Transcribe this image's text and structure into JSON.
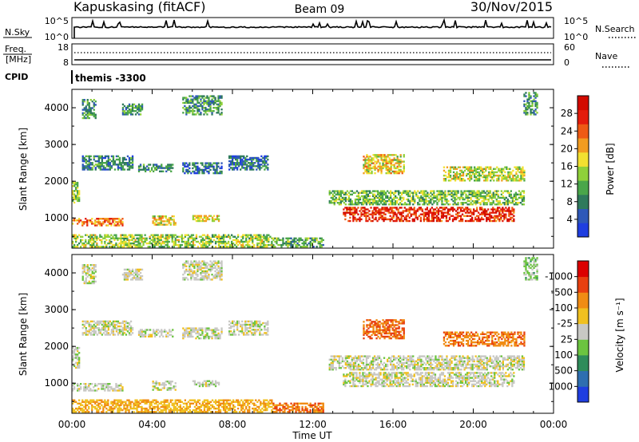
{
  "header": {
    "station": "Kapuskasing (fitACF)",
    "beam": "Beam 09",
    "date": "30/Nov/2015"
  },
  "status_panels": {
    "nsky": {
      "label": "N.Sky",
      "ticks_left": [
        "10^5",
        "10^0"
      ],
      "ticks_right": [
        "10^5",
        "10^0"
      ],
      "right_label": "N.Search"
    },
    "freq": {
      "label_line1": "Freq.",
      "label_line2": "[MHz]",
      "ticks_left": [
        "18",
        "8"
      ],
      "ticks_right": [
        "60",
        "0"
      ],
      "right_label": "Nave"
    },
    "cpid": {
      "label": "CPID",
      "value": "themis -3300"
    }
  },
  "chart_data": [
    {
      "type": "heatmap",
      "panel": "power",
      "ylabel": "Slant Range [km]",
      "yticks": [
        "1000",
        "2000",
        "3000",
        "4000"
      ],
      "ylim": [
        180,
        4500
      ],
      "xlim": [
        0,
        24
      ],
      "colorbar": {
        "label": "Power [dB]",
        "ticks": [
          "4",
          "8",
          "12",
          "16",
          "20",
          "24",
          "28"
        ],
        "colors": [
          "#1f3ee0",
          "#2e58b8",
          "#2f7a5c",
          "#4aa64a",
          "#8fd03a",
          "#f2e030",
          "#f29c20",
          "#ee5a14",
          "#e41c0c",
          "#d20a00"
        ]
      },
      "regions": [
        {
          "t": [
            0.0,
            0.4
          ],
          "r": [
            1400,
            1950
          ],
          "level": 0.45
        },
        {
          "t": [
            0.5,
            3.0
          ],
          "r": [
            2300,
            2700
          ],
          "level": 0.25
        },
        {
          "t": [
            3.3,
            5.0
          ],
          "r": [
            2250,
            2450
          ],
          "level": 0.25
        },
        {
          "t": [
            5.5,
            7.5
          ],
          "r": [
            2200,
            2500
          ],
          "level": 0.2
        },
        {
          "t": [
            7.8,
            9.8
          ],
          "r": [
            2300,
            2700
          ],
          "level": 0.2
        },
        {
          "t": [
            0.0,
            2.5
          ],
          "r": [
            780,
            1000
          ],
          "level": 0.7
        },
        {
          "t": [
            4.0,
            5.2
          ],
          "r": [
            800,
            1050
          ],
          "level": 0.55
        },
        {
          "t": [
            6.0,
            7.3
          ],
          "r": [
            900,
            1050
          ],
          "level": 0.55
        },
        {
          "t": [
            0.0,
            10.0
          ],
          "r": [
            200,
            520
          ],
          "level": 0.45
        },
        {
          "t": [
            10.0,
            12.5
          ],
          "r": [
            200,
            450
          ],
          "level": 0.35
        },
        {
          "t": [
            12.8,
            22.5
          ],
          "r": [
            1350,
            1750
          ],
          "level": 0.4
        },
        {
          "t": [
            13.5,
            22.0
          ],
          "r": [
            900,
            1300
          ],
          "level": 0.85
        },
        {
          "t": [
            14.5,
            16.5
          ],
          "r": [
            2200,
            2700
          ],
          "level": 0.55
        },
        {
          "t": [
            18.5,
            22.5
          ],
          "r": [
            2000,
            2400
          ],
          "level": 0.5
        },
        {
          "t": [
            0.5,
            1.2
          ],
          "r": [
            3700,
            4200
          ],
          "level": 0.3
        },
        {
          "t": [
            2.5,
            3.5
          ],
          "r": [
            3800,
            4100
          ],
          "level": 0.3
        },
        {
          "t": [
            5.5,
            7.5
          ],
          "r": [
            3800,
            4300
          ],
          "level": 0.3
        },
        {
          "t": [
            22.5,
            23.2
          ],
          "r": [
            3800,
            4400
          ],
          "level": 0.3
        }
      ]
    },
    {
      "type": "heatmap",
      "panel": "velocity",
      "ylabel": "Slant Range [km]",
      "yticks": [
        "1000",
        "2000",
        "3000",
        "4000"
      ],
      "ylim": [
        180,
        4500
      ],
      "xlim": [
        0,
        24
      ],
      "xticks": [
        "00:00",
        "04:00",
        "08:00",
        "12:00",
        "16:00",
        "20:00",
        "00:00"
      ],
      "xlabel": "Time UT",
      "colorbar": {
        "label": "Velocity [m s⁻¹]",
        "ticks": [
          "1000",
          "500",
          "100",
          "25",
          "-25",
          "-100",
          "-500",
          "-1000"
        ],
        "colors": [
          "#1f3ee0",
          "#2e6eb0",
          "#2f8c5a",
          "#6cc440",
          "#c8c8c4",
          "#f0c020",
          "#f08c14",
          "#e84010",
          "#dc0000"
        ]
      },
      "regions": [
        {
          "t": [
            0.0,
            0.4
          ],
          "r": [
            1400,
            1950
          ],
          "level": 0.5
        },
        {
          "t": [
            0.5,
            3.0
          ],
          "r": [
            2300,
            2700
          ],
          "level": 0.5
        },
        {
          "t": [
            3.3,
            5.0
          ],
          "r": [
            2250,
            2450
          ],
          "level": 0.5
        },
        {
          "t": [
            5.5,
            7.5
          ],
          "r": [
            2200,
            2500
          ],
          "level": 0.5
        },
        {
          "t": [
            7.8,
            9.8
          ],
          "r": [
            2300,
            2700
          ],
          "level": 0.5
        },
        {
          "t": [
            0.0,
            2.5
          ],
          "r": [
            780,
            1000
          ],
          "level": 0.5
        },
        {
          "t": [
            4.0,
            5.2
          ],
          "r": [
            800,
            1050
          ],
          "level": 0.5
        },
        {
          "t": [
            6.0,
            7.3
          ],
          "r": [
            900,
            1050
          ],
          "level": 0.5
        },
        {
          "t": [
            0.0,
            10.0
          ],
          "r": [
            200,
            520
          ],
          "level": 0.65
        },
        {
          "t": [
            10.0,
            12.5
          ],
          "r": [
            200,
            450
          ],
          "level": 0.75
        },
        {
          "t": [
            12.8,
            22.5
          ],
          "r": [
            1350,
            1750
          ],
          "level": 0.5
        },
        {
          "t": [
            13.5,
            22.0
          ],
          "r": [
            900,
            1300
          ],
          "level": 0.5
        },
        {
          "t": [
            14.5,
            16.5
          ],
          "r": [
            2200,
            2700
          ],
          "level": 0.78
        },
        {
          "t": [
            18.5,
            22.5
          ],
          "r": [
            2000,
            2400
          ],
          "level": 0.75
        },
        {
          "t": [
            0.5,
            1.2
          ],
          "r": [
            3700,
            4200
          ],
          "level": 0.5
        },
        {
          "t": [
            2.5,
            3.5
          ],
          "r": [
            3800,
            4100
          ],
          "level": 0.5
        },
        {
          "t": [
            5.5,
            7.5
          ],
          "r": [
            3800,
            4300
          ],
          "level": 0.5
        },
        {
          "t": [
            22.5,
            23.2
          ],
          "r": [
            3800,
            4400
          ],
          "level": 0.4
        }
      ]
    }
  ]
}
